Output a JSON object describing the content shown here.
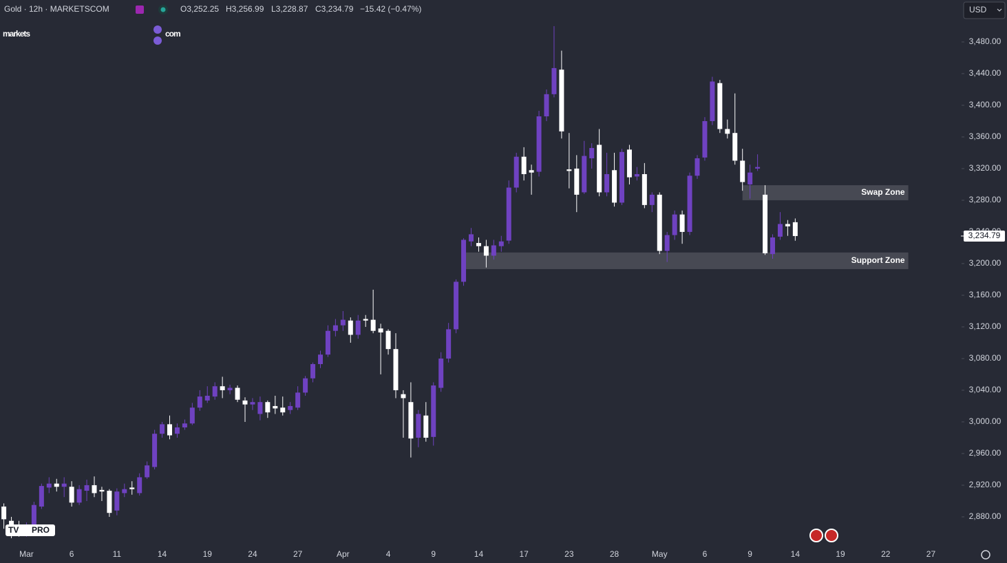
{
  "header": {
    "title": "Gold · 12h · MARKETSCOM",
    "ohlc": [
      "O3,252.25",
      "H3,256.99",
      "L3,228.87",
      "C3,234.79"
    ],
    "change": "−15.42 (−0.47%)",
    "logo": [
      "markets",
      "com"
    ],
    "currency": "USD",
    "badge": "PRO"
  },
  "chart_data": {
    "type": "candlestick",
    "up_color": "#6f42c1",
    "down_color": "#ffffff",
    "categories": [
      null,
      null,
      null,
      "Mar",
      null,
      null,
      null,
      null,
      null,
      "6",
      null,
      null,
      null,
      null,
      null,
      "11",
      null,
      null,
      null,
      null,
      null,
      "14",
      null,
      null,
      null,
      null,
      null,
      "19",
      null,
      null,
      null,
      null,
      null,
      "24",
      null,
      null,
      null,
      null,
      null,
      "27",
      null,
      null,
      null,
      null,
      null,
      "Apr",
      null,
      null,
      null,
      null,
      null,
      "4",
      null,
      null,
      null,
      null,
      null,
      "9",
      null,
      null,
      null,
      null,
      null,
      "14",
      null,
      null,
      null,
      null,
      null,
      "17",
      null,
      null,
      null,
      null,
      null,
      "23",
      null,
      null,
      null,
      null,
      null,
      "28",
      null,
      null,
      null,
      null,
      null,
      "May",
      null,
      null,
      null,
      null,
      null,
      "6",
      null,
      null,
      null,
      null,
      null,
      "9",
      null,
      null,
      null,
      null,
      null,
      "14",
      null,
      null,
      null,
      null,
      null,
      "19",
      null,
      null,
      null,
      null,
      null,
      "22",
      null,
      null,
      null,
      null,
      null,
      "27"
    ],
    "open": [
      2893,
      2875,
      2868,
      2860,
      2870,
      2893,
      2917,
      2922,
      2918,
      2918,
      2898,
      2913,
      2920,
      2914,
      2913,
      2888,
      2910,
      2917,
      2910,
      2930,
      2943,
      2985,
      2997,
      2985,
      2993,
      2998,
      3018,
      3027,
      3032,
      3045,
      3040,
      3043,
      3027,
      3022,
      3010,
      3025,
      3020,
      3018,
      3015,
      3018,
      3037,
      3055,
      3073,
      3085,
      3115,
      3122,
      3128,
      3110,
      3130,
      3129,
      3118,
      3115,
      3092,
      3035,
      3025,
      2980,
      3008,
      2981,
      3043,
      3080,
      3117,
      3177,
      3228,
      3226,
      3222,
      3210,
      3222,
      3229,
      3296,
      3335,
      3318,
      3316,
      3386,
      3414,
      3445,
      3319,
      3320,
      3290,
      3333,
      3350,
      3290,
      3318,
      3277,
      3344,
      3310,
      3313,
      3274,
      3287,
      3216,
      3236,
      3262,
      3240,
      3311,
      3334,
      3380,
      3428,
      3370,
      3365,
      3330,
      3300,
      3320,
      3287,
      3212,
      3234,
      3250,
      3252.25,
      null,
      null,
      null,
      null,
      null,
      null,
      null,
      null,
      null,
      null,
      null,
      null,
      null,
      null,
      null,
      null,
      null,
      null
    ],
    "high": [
      2897,
      2880,
      2875,
      2873,
      2899,
      2922,
      2930,
      2928,
      2930,
      2925,
      2920,
      2927,
      2931,
      2918,
      2915,
      2916,
      2922,
      2925,
      2935,
      2950,
      2990,
      3000,
      3008,
      2998,
      3003,
      3024,
      3040,
      3045,
      3050,
      3057,
      3047,
      3046,
      3031,
      3030,
      3032,
      3027,
      3033,
      3032,
      3025,
      3045,
      3058,
      3075,
      3090,
      3122,
      3130,
      3140,
      3132,
      3135,
      3135,
      3167,
      3124,
      3117,
      3112,
      3040,
      3050,
      3015,
      3025,
      3050,
      3088,
      3125,
      3180,
      3232,
      3245,
      3233,
      3230,
      3230,
      3235,
      3305,
      3340,
      3347,
      3325,
      3393,
      3420,
      3500,
      3469,
      3365,
      3337,
      3355,
      3352,
      3370,
      3340,
      3340,
      3345,
      3350,
      3322,
      3327,
      3290,
      3290,
      3240,
      3267,
      3267,
      3315,
      3337,
      3385,
      3436,
      3432,
      3382,
      3415,
      3345,
      3325,
      3338,
      3299,
      3237,
      3265,
      3255,
      3256.99,
      null,
      null,
      null,
      null,
      null,
      null,
      null,
      null,
      null,
      null,
      null,
      null,
      null,
      null,
      null,
      null,
      null,
      null
    ],
    "low": [
      2865,
      2853,
      2855,
      2855,
      2866,
      2890,
      2910,
      2912,
      2905,
      2893,
      2895,
      2900,
      2905,
      2900,
      2880,
      2882,
      2905,
      2908,
      2907,
      2928,
      2940,
      2980,
      2978,
      2980,
      2990,
      2996,
      3014,
      3024,
      3028,
      3030,
      3035,
      3025,
      3000,
      3015,
      3002,
      3005,
      3010,
      3008,
      3010,
      3015,
      3033,
      3050,
      3068,
      3082,
      3108,
      3115,
      3100,
      3105,
      3120,
      3112,
      3060,
      3085,
      3030,
      2980,
      2955,
      2968,
      2975,
      2970,
      3038,
      3075,
      3112,
      3172,
      3222,
      3215,
      3195,
      3205,
      3215,
      3225,
      3290,
      3305,
      3287,
      3310,
      3380,
      3410,
      3358,
      3295,
      3265,
      3288,
      3320,
      3285,
      3285,
      3272,
      3274,
      3300,
      3305,
      3270,
      3265,
      3212,
      3202,
      3230,
      3225,
      3236,
      3307,
      3330,
      3375,
      3365,
      3358,
      3325,
      3292,
      3282,
      3317,
      3211,
      3206,
      3230,
      3235,
      3228.87,
      null,
      null,
      null,
      null,
      null,
      null,
      null,
      null,
      null,
      null,
      null,
      null,
      null,
      null,
      null,
      null,
      null,
      null
    ],
    "close": [
      2877,
      2865,
      2862,
      2868,
      2895,
      2919,
      2922,
      2918,
      2922,
      2898,
      2915,
      2920,
      2910,
      2912,
      2885,
      2912,
      2915,
      2915,
      2930,
      2945,
      2985,
      2997,
      2983,
      2993,
      2998,
      3018,
      3032,
      3033,
      3045,
      3040,
      3043,
      3028,
      3022,
      3025,
      3025,
      3012,
      3017,
      3012,
      3020,
      3037,
      3055,
      3073,
      3085,
      3115,
      3122,
      3129,
      3110,
      3128,
      3128,
      3115,
      3113,
      3092,
      3040,
      3030,
      2979,
      3010,
      2980,
      3046,
      3080,
      3117,
      3177,
      3230,
      3237,
      3222,
      3210,
      3223,
      3228,
      3296,
      3335,
      3313,
      3315,
      3386,
      3414,
      3447,
      3367,
      3317,
      3287,
      3336,
      3346,
      3290,
      3313,
      3277,
      3341,
      3309,
      3313,
      3274,
      3287,
      3216,
      3236,
      3262,
      3240,
      3311,
      3333,
      3380,
      3430,
      3370,
      3364,
      3330,
      3303,
      3315,
      3322,
      3213,
      3233,
      3250,
      3247,
      3234.79,
      null,
      null,
      null,
      null,
      null,
      null,
      null,
      null,
      null,
      null,
      null,
      null,
      null,
      null,
      null,
      null,
      null,
      null
    ],
    "ylim": [
      2841.7,
      3533
    ],
    "yticks": [
      {
        "value": 2880,
        "label": "2,880.00"
      },
      {
        "value": 2920,
        "label": "2,920.00"
      },
      {
        "value": 2960,
        "label": "2,960.00"
      },
      {
        "value": 3000,
        "label": "3,000.00"
      },
      {
        "value": 3040,
        "label": "3,040.00"
      },
      {
        "value": 3080,
        "label": "3,080.00"
      },
      {
        "value": 3120,
        "label": "3,120.00"
      },
      {
        "value": 3160,
        "label": "3,160.00"
      },
      {
        "value": 3200,
        "label": "3,200.00"
      },
      {
        "value": 3240,
        "label": "3,240.00"
      },
      {
        "value": 3280,
        "label": "3,280.00"
      },
      {
        "value": 3320,
        "label": "3,320.00"
      },
      {
        "value": 3360,
        "label": "3,360.00"
      },
      {
        "value": 3400,
        "label": "3,400.00"
      },
      {
        "value": 3440,
        "label": "3,440.00"
      },
      {
        "value": 3480,
        "label": "3,480.00"
      }
    ],
    "last_price": {
      "value": 3234.79,
      "label": "3,234.79"
    },
    "zones": [
      {
        "label": "Swap Zone",
        "ylim": [
          3280,
          3299
        ],
        "xlim": [
          98,
          120
        ]
      },
      {
        "label": "Support Zone",
        "ylim": [
          3193,
          3214
        ],
        "xlim": [
          61,
          120
        ]
      }
    ],
    "grid": false
  }
}
